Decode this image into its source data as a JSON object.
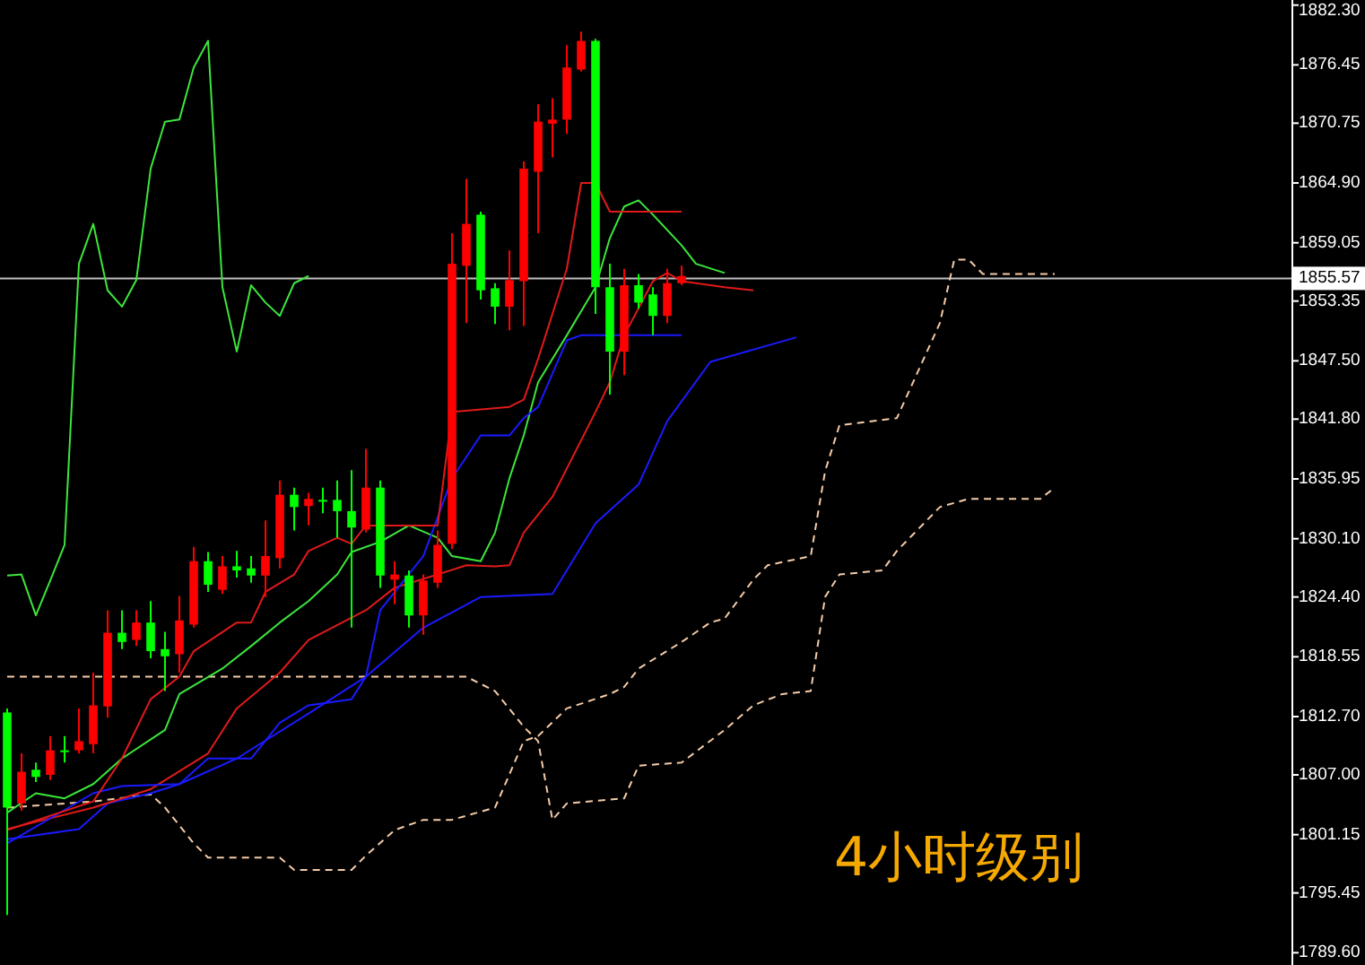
{
  "chart_data": {
    "type": "candlestick",
    "categories": [
      null,
      null,
      null,
      null,
      null,
      null,
      null,
      null,
      null,
      null,
      null,
      null,
      null,
      null,
      null,
      null,
      null,
      null,
      null,
      null,
      null,
      null,
      null,
      null,
      null,
      null,
      null,
      null,
      null,
      null,
      null,
      null,
      null,
      null,
      null,
      null,
      null,
      null,
      null,
      null,
      null,
      null,
      null,
      null,
      null,
      null,
      null,
      null,
      null,
      null,
      null,
      null,
      null,
      null,
      null,
      null,
      null,
      null,
      null,
      null,
      null,
      null,
      null,
      null,
      null,
      null,
      null,
      null,
      null,
      null,
      null,
      null,
      null,
      null,
      null,
      null,
      null,
      null,
      null,
      null,
      null,
      null,
      null,
      null,
      null,
      null,
      null,
      null,
      null,
      null
    ],
    "ohlc": [
      [
        1813.1,
        1813.5,
        1793.3,
        1803.8
      ],
      [
        1804.2,
        1809.1,
        1803.5,
        1807.3
      ],
      [
        1807.5,
        1808.2,
        1806.3,
        1806.8
      ],
      [
        1807.0,
        1810.8,
        1806.5,
        1809.4
      ],
      [
        1809.4,
        1810.8,
        1808.2,
        1809.3
      ],
      [
        1809.4,
        1813.5,
        1809.1,
        1810.3
      ],
      [
        1810.0,
        1817.0,
        1809.1,
        1813.8
      ],
      [
        1813.7,
        1823.1,
        1812.6,
        1820.9
      ],
      [
        1820.9,
        1823.1,
        1819.3,
        1820.0
      ],
      [
        1820.2,
        1823.1,
        1819.6,
        1821.9
      ],
      [
        1821.9,
        1824.0,
        1818.4,
        1819.1
      ],
      [
        1819.3,
        1821.0,
        1815.2,
        1818.6
      ],
      [
        1818.8,
        1824.5,
        1817.0,
        1822.1
      ],
      [
        1821.7,
        1829.3,
        1821.4,
        1827.9
      ],
      [
        1827.9,
        1828.8,
        1824.9,
        1825.6
      ],
      [
        1825.1,
        1828.4,
        1824.7,
        1827.4
      ],
      [
        1827.4,
        1828.9,
        1826.3,
        1827.0
      ],
      [
        1827.2,
        1828.4,
        1825.8,
        1826.5
      ],
      [
        1826.5,
        1831.9,
        1824.4,
        1828.4
      ],
      [
        1828.2,
        1835.8,
        1827.2,
        1834.4
      ],
      [
        1834.4,
        1835.1,
        1830.9,
        1833.2
      ],
      [
        1833.3,
        1834.6,
        1831.4,
        1834.0
      ],
      [
        1833.9,
        1835.1,
        1832.6,
        1833.8
      ],
      [
        1833.9,
        1835.8,
        1830.2,
        1832.8
      ],
      [
        1832.8,
        1836.8,
        1821.4,
        1831.2
      ],
      [
        1831.0,
        1838.9,
        1830.7,
        1835.1
      ],
      [
        1835.1,
        1835.8,
        1825.3,
        1826.5
      ],
      [
        1826.1,
        1827.9,
        1823.7,
        1826.6
      ],
      [
        1826.5,
        1827.0,
        1821.4,
        1822.6
      ],
      [
        1822.6,
        1826.6,
        1820.7,
        1826.0
      ],
      [
        1825.8,
        1830.9,
        1825.3,
        1829.5
      ],
      [
        1829.6,
        1860.0,
        1829.1,
        1857.0
      ],
      [
        1856.8,
        1865.3,
        1851.2,
        1860.9
      ],
      [
        1861.8,
        1862.1,
        1853.5,
        1854.4
      ],
      [
        1854.6,
        1855.1,
        1851.1,
        1852.8
      ],
      [
        1852.8,
        1858.3,
        1850.5,
        1855.4
      ],
      [
        1855.3,
        1867.0,
        1850.9,
        1866.3
      ],
      [
        1866.0,
        1872.6,
        1860.0,
        1870.9
      ],
      [
        1870.7,
        1873.2,
        1867.4,
        1871.1
      ],
      [
        1871.1,
        1878.4,
        1869.7,
        1876.2
      ],
      [
        1876.0,
        1879.7,
        1875.8,
        1878.8
      ],
      [
        1878.8,
        1879.0,
        1852.1,
        1854.7
      ],
      [
        1854.7,
        1857.0,
        1844.2,
        1848.4
      ],
      [
        1848.4,
        1856.5,
        1846.1,
        1854.9
      ],
      [
        1854.9,
        1856.0,
        1852.6,
        1853.2
      ],
      [
        1854.0,
        1854.7,
        1850.0,
        1851.9
      ],
      [
        1851.9,
        1856.5,
        1851.2,
        1855.1
      ],
      [
        1855.1,
        1856.8,
        1854.9,
        1855.8
      ],
      null,
      null,
      null,
      null,
      null,
      null,
      null,
      null,
      null,
      null,
      null,
      null,
      null,
      null,
      null,
      null,
      null,
      null,
      null,
      null,
      null,
      null,
      null,
      null,
      null,
      null,
      null,
      null,
      null,
      null,
      null,
      null,
      null,
      null,
      null,
      null,
      null,
      null,
      null,
      null,
      null,
      null
    ],
    "colors": [
      "#00ff00",
      "#ff0000",
      "#00ff00",
      "#ff0000",
      "#00ff00",
      "#ff0000",
      "#ff0000",
      "#ff0000",
      "#00ff00",
      "#ff0000",
      "#00ff00",
      "#00ff00",
      "#ff0000",
      "#ff0000",
      "#00ff00",
      "#ff0000",
      "#00ff00",
      "#00ff00",
      "#ff0000",
      "#ff0000",
      "#00ff00",
      "#ff0000",
      "#00ff00",
      "#00ff00",
      "#00ff00",
      "#ff0000",
      "#00ff00",
      "#ff0000",
      "#00ff00",
      "#ff0000",
      "#ff0000",
      "#ff0000",
      "#ff0000",
      "#00ff00",
      "#00ff00",
      "#ff0000",
      "#ff0000",
      "#ff0000",
      "#ff0000",
      "#ff0000",
      "#ff0000",
      "#00ff00",
      "#00ff00",
      "#ff0000",
      "#00ff00",
      "#00ff00",
      "#ff0000",
      "#ff0000",
      null,
      null,
      null,
      null,
      null,
      null,
      null,
      null,
      null,
      null,
      null,
      null,
      null,
      null,
      null,
      null,
      null,
      null,
      null,
      null,
      null,
      null,
      null,
      null,
      null,
      null,
      null,
      null,
      null,
      null,
      null,
      null,
      null,
      null,
      null,
      null,
      null,
      null,
      null,
      null,
      null,
      null
    ],
    "series": [
      {
        "type": "line",
        "color": "#f5cba7",
        "line_style": "dashed",
        "values": [
          1803.8,
          null,
          null,
          null,
          null,
          null,
          1804.4,
          null,
          null,
          null,
          1805.1,
          1803.8,
          null,
          1800.3,
          1798.9,
          null,
          null,
          null,
          null,
          1798.9,
          1797.7,
          null,
          null,
          null,
          1797.7,
          1799.1,
          null,
          1801.6,
          null,
          1802.6,
          null,
          1802.6,
          null,
          null,
          1803.8,
          null,
          1810.3,
          1810.8,
          null,
          1813.5,
          null,
          null,
          1814.9,
          1815.6,
          1817.4,
          null,
          null,
          1820.0,
          null,
          1821.9,
          1822.3,
          null,
          1826.1,
          1827.5,
          null,
          null,
          1828.4,
          1836.7,
          1841.2,
          null,
          null,
          null,
          1841.9,
          null,
          1848.1,
          1851.2,
          1857.4,
          1857.4,
          1856.0,
          null,
          null,
          null,
          null,
          1856.0,
          null,
          null,
          null,
          null,
          null,
          null,
          null,
          null,
          null,
          null,
          null,
          null,
          null,
          null,
          null,
          null
        ]
      },
      {
        "type": "line",
        "color": "#f5cba7",
        "line_style": "dashed",
        "values": [
          1816.6,
          null,
          null,
          null,
          null,
          null,
          null,
          null,
          null,
          null,
          null,
          null,
          null,
          null,
          null,
          null,
          null,
          null,
          null,
          null,
          null,
          null,
          null,
          null,
          null,
          null,
          null,
          null,
          null,
          null,
          null,
          null,
          1816.6,
          null,
          1815.2,
          null,
          1811.7,
          1810.3,
          1802.6,
          1804.2,
          null,
          null,
          null,
          1804.7,
          1807.9,
          null,
          null,
          1808.2,
          null,
          null,
          1811.4,
          null,
          1813.8,
          null,
          1814.9,
          null,
          1815.2,
          1824.4,
          1826.6,
          null,
          null,
          1827.0,
          1828.9,
          null,
          null,
          1833.2,
          null,
          1834.0,
          null,
          null,
          null,
          null,
          1834.0,
          1835.1,
          null,
          null,
          null,
          null,
          null,
          null,
          null,
          null,
          null,
          null,
          null,
          null,
          null,
          null,
          null,
          null
        ]
      },
      {
        "type": "line",
        "color": "#1a1aff",
        "values": [
          1800.7,
          null,
          null,
          null,
          null,
          1801.7,
          null,
          1804.2,
          null,
          null,
          1805.2,
          null,
          1806.1,
          null,
          null,
          null,
          1808.6,
          null,
          null,
          null,
          null,
          1813.0,
          null,
          null,
          null,
          1816.6,
          null,
          null,
          null,
          1821.4,
          null,
          null,
          null,
          1824.4,
          null,
          null,
          null,
          null,
          1824.7,
          null,
          null,
          1831.6,
          null,
          null,
          1835.4,
          null,
          1841.6,
          null,
          null,
          1847.4,
          null,
          null,
          null,
          null,
          null,
          1849.8,
          null,
          null,
          null,
          null,
          null,
          null,
          null,
          null,
          null,
          null,
          null,
          null,
          null,
          null,
          null,
          null,
          null,
          null,
          null,
          null,
          null,
          null,
          null,
          null,
          null,
          null,
          null,
          null,
          null,
          null,
          null,
          null,
          null,
          null
        ]
      },
      {
        "type": "line",
        "color": "#e01a1a",
        "values": [
          1801.7,
          null,
          null,
          null,
          null,
          null,
          1803.8,
          null,
          null,
          null,
          1805.6,
          null,
          null,
          null,
          1809.1,
          null,
          1813.5,
          null,
          null,
          1817.0,
          null,
          1820.2,
          null,
          null,
          null,
          1823.1,
          null,
          1825.3,
          null,
          null,
          1826.6,
          null,
          1827.5,
          null,
          1827.4,
          1827.5,
          1830.7,
          null,
          1834.2,
          null,
          null,
          1842.5,
          1845.4,
          1850.0,
          null,
          1855.3,
          1856.1,
          1855.3,
          null,
          null,
          1854.7,
          null,
          1854.4,
          null,
          null,
          null,
          null,
          null,
          null,
          null,
          null,
          null,
          null,
          null,
          null,
          null,
          null,
          null,
          null,
          null,
          null,
          null,
          null,
          null,
          null,
          null,
          null,
          null,
          null,
          null,
          null,
          null,
          null,
          null,
          null,
          null,
          null,
          null,
          null,
          null
        ]
      },
      {
        "type": "line",
        "color": "#3ce63c",
        "values": [
          1803.3,
          null,
          1805.2,
          null,
          1804.7,
          null,
          1806.1,
          null,
          1808.6,
          null,
          null,
          1811.4,
          1814.9,
          null,
          null,
          1817.4,
          null,
          1819.6,
          null,
          1821.9,
          null,
          1824.0,
          null,
          1826.6,
          1828.8,
          null,
          1829.8,
          null,
          1831.4,
          null,
          1830.2,
          1828.4,
          null,
          1827.9,
          1830.7,
          1836.0,
          1840.2,
          1845.4,
          null,
          1850.0,
          null,
          1854.7,
          1859.5,
          1862.6,
          1863.2,
          1861.8,
          null,
          1858.8,
          1857.0,
          null,
          1856.1,
          null,
          null,
          null,
          null,
          null,
          null,
          null,
          null,
          null,
          null,
          null,
          null,
          null,
          null,
          null,
          null,
          null,
          null,
          null,
          null,
          null,
          null,
          null,
          null,
          null,
          null,
          null,
          null,
          null,
          null,
          null,
          null,
          null,
          null,
          null,
          null,
          null,
          null,
          null
        ]
      },
      {
        "type": "line",
        "color": "#1a1aff",
        "values": [
          1800.3,
          null,
          null,
          null,
          null,
          null,
          1805.2,
          null,
          1805.9,
          null,
          null,
          null,
          1806.1,
          null,
          1808.6,
          null,
          null,
          1808.6,
          null,
          1812.1,
          null,
          1813.8,
          null,
          null,
          1814.4,
          1816.6,
          1823.1,
          null,
          null,
          1828.4,
          null,
          1836.0,
          null,
          1840.2,
          null,
          1840.2,
          1841.9,
          1843.0,
          null,
          1849.5,
          1850.0,
          null,
          null,
          null,
          null,
          null,
          null,
          1850.0,
          null,
          null,
          null,
          null,
          null,
          null,
          null,
          null,
          null,
          null,
          null,
          null,
          null,
          null,
          null,
          null,
          null,
          null,
          null,
          null,
          null,
          null,
          null,
          null,
          null,
          null,
          null,
          null,
          null,
          null,
          null,
          null,
          null,
          null,
          null,
          null,
          null,
          null,
          null,
          null,
          null,
          null
        ]
      },
      {
        "type": "line",
        "color": "#e01a1a",
        "values": [
          1801.6,
          null,
          null,
          null,
          null,
          null,
          1804.4,
          null,
          1808.6,
          null,
          1814.4,
          null,
          1816.6,
          1819.1,
          null,
          null,
          1821.9,
          1821.9,
          1824.9,
          null,
          1826.6,
          1828.9,
          null,
          1830.2,
          1829.6,
          1831.4,
          null,
          null,
          null,
          null,
          1831.4,
          1842.5,
          null,
          null,
          null,
          1843.0,
          1843.7,
          1847.7,
          null,
          1856.5,
          1864.9,
          1864.9,
          1862.1,
          null,
          null,
          null,
          null,
          1862.1,
          null,
          null,
          null,
          null,
          null,
          null,
          null,
          null,
          null,
          null,
          null,
          null,
          null,
          null,
          null,
          null,
          null,
          null,
          null,
          null,
          null,
          null,
          null,
          null,
          null,
          null,
          null,
          null,
          null,
          null,
          null,
          null,
          null,
          null,
          null,
          null,
          null,
          null,
          null,
          null,
          null,
          null
        ]
      },
      {
        "type": "line",
        "color": "#3ce63c",
        "values": [
          1826.5,
          1826.6,
          1822.6,
          1826.0,
          1829.5,
          1857.0,
          1860.9,
          1854.4,
          1852.8,
          1855.4,
          1866.3,
          1870.9,
          1871.1,
          1876.2,
          1878.8,
          1854.7,
          1848.4,
          1854.9,
          1853.2,
          1851.9,
          1855.1,
          1855.8,
          null,
          null,
          null,
          null,
          null,
          null,
          null,
          null,
          null,
          null,
          null,
          null,
          null,
          null,
          null,
          null,
          null,
          null,
          null,
          null,
          null,
          null,
          null,
          null,
          null,
          null,
          null,
          null,
          null,
          null,
          null,
          null,
          null,
          null,
          null,
          null,
          null,
          null,
          null,
          null,
          null,
          null,
          null,
          null,
          null,
          null,
          null,
          null,
          null,
          null,
          null,
          null,
          null,
          null,
          null,
          null,
          null,
          null,
          null,
          null,
          null,
          null,
          null,
          null,
          null,
          null,
          null,
          null
        ]
      }
    ],
    "ylim": [
      1788.4,
      1882.8
    ],
    "yticks": [
      {
        "value": 1882.3,
        "label": "1882.30"
      },
      {
        "value": 1876.45,
        "label": "1876.45"
      },
      {
        "value": 1870.75,
        "label": "1870.75"
      },
      {
        "value": 1864.9,
        "label": "1864.90"
      },
      {
        "value": 1859.05,
        "label": "1859.05"
      },
      {
        "value": 1853.35,
        "label": "1853.35"
      },
      {
        "value": 1847.5,
        "label": "1847.50"
      },
      {
        "value": 1841.8,
        "label": "1841.80"
      },
      {
        "value": 1835.95,
        "label": "1835.95"
      },
      {
        "value": 1830.1,
        "label": "1830.10"
      },
      {
        "value": 1824.4,
        "label": "1824.40"
      },
      {
        "value": 1818.55,
        "label": "1818.55"
      },
      {
        "value": 1812.7,
        "label": "1812.70"
      },
      {
        "value": 1807.0,
        "label": "1807.00"
      },
      {
        "value": 1801.15,
        "label": "1801.15"
      },
      {
        "value": 1795.45,
        "label": "1795.45"
      },
      {
        "value": 1789.6,
        "label": "1789.60"
      }
    ],
    "tick_labels": "y",
    "ref_lines": [
      {
        "axis": "y",
        "value": 1855.57,
        "label": "1855.57",
        "color": "#c0c0c0"
      }
    ],
    "annotations": [
      "4小时级别"
    ]
  }
}
